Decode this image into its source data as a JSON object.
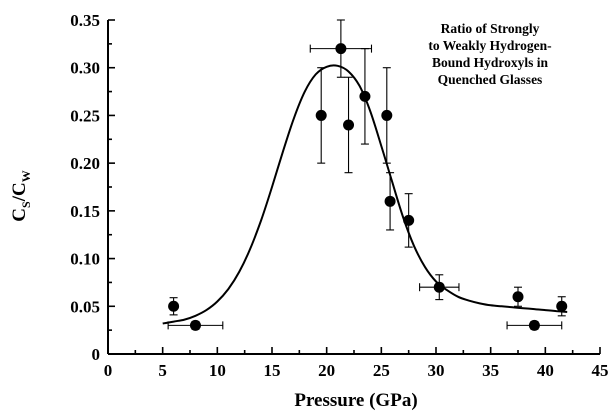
{
  "chart_data": {
    "type": "scatter",
    "xlabel": "Pressure (GPa)",
    "ylabel": {
      "main": "C",
      "sub1": "S",
      "mid": "/C",
      "sub2": "W"
    },
    "annotation": [
      "Ratio of Strongly",
      "to Weakly Hydrogen-",
      "Bound Hydroxyls in",
      "Quenched Glasses"
    ],
    "xlim": [
      0,
      45
    ],
    "ylim": [
      0,
      0.35
    ],
    "xticks": [
      "0",
      "5",
      "10",
      "15",
      "20",
      "25",
      "30",
      "35",
      "40",
      "45"
    ],
    "yticks": [
      "0",
      "0.05",
      "0.10",
      "0.15",
      "0.20",
      "0.25",
      "0.30",
      "0.35"
    ],
    "points": [
      {
        "x": 6.0,
        "y": 0.05,
        "yerr": 0.009,
        "xerr": 0
      },
      {
        "x": 8.0,
        "y": 0.03,
        "yerr": 0.004,
        "xerr": 2.5
      },
      {
        "x": 19.5,
        "y": 0.25,
        "yerr": 0.05,
        "xerr": 0
      },
      {
        "x": 21.3,
        "y": 0.32,
        "yerr": 0.03,
        "xerr": 2.8
      },
      {
        "x": 22.0,
        "y": 0.24,
        "yerr": 0.05,
        "xerr": 0
      },
      {
        "x": 23.5,
        "y": 0.27,
        "yerr": 0.05,
        "xerr": 0
      },
      {
        "x": 25.5,
        "y": 0.25,
        "yerr": 0.05,
        "xerr": 0
      },
      {
        "x": 25.8,
        "y": 0.16,
        "yerr": 0.03,
        "xerr": 0
      },
      {
        "x": 27.5,
        "y": 0.14,
        "yerr": 0.028,
        "xerr": 0
      },
      {
        "x": 30.3,
        "y": 0.07,
        "yerr": 0.013,
        "xerr": 1.8
      },
      {
        "x": 37.5,
        "y": 0.06,
        "yerr": 0.01,
        "xerr": 0
      },
      {
        "x": 39.0,
        "y": 0.03,
        "yerr": 0.004,
        "xerr": 2.5
      },
      {
        "x": 41.5,
        "y": 0.05,
        "yerr": 0.01,
        "xerr": 0
      }
    ],
    "fit_curve": {
      "x": [
        5,
        6,
        7,
        8,
        9,
        10,
        11,
        12,
        13,
        14,
        15,
        16,
        17,
        18,
        19,
        20,
        21,
        22,
        23,
        24,
        25,
        26,
        27,
        28,
        29,
        30,
        31,
        32,
        33,
        34,
        35,
        36,
        37,
        38,
        39,
        40,
        41,
        42
      ],
      "y": [
        0.032,
        0.034,
        0.036,
        0.04,
        0.046,
        0.055,
        0.068,
        0.086,
        0.11,
        0.14,
        0.175,
        0.212,
        0.247,
        0.275,
        0.293,
        0.301,
        0.302,
        0.296,
        0.281,
        0.254,
        0.218,
        0.18,
        0.143,
        0.113,
        0.091,
        0.076,
        0.067,
        0.06,
        0.056,
        0.053,
        0.051,
        0.05,
        0.049,
        0.048,
        0.047,
        0.046,
        0.045,
        0.044
      ]
    },
    "grid": false,
    "legend": "none"
  }
}
